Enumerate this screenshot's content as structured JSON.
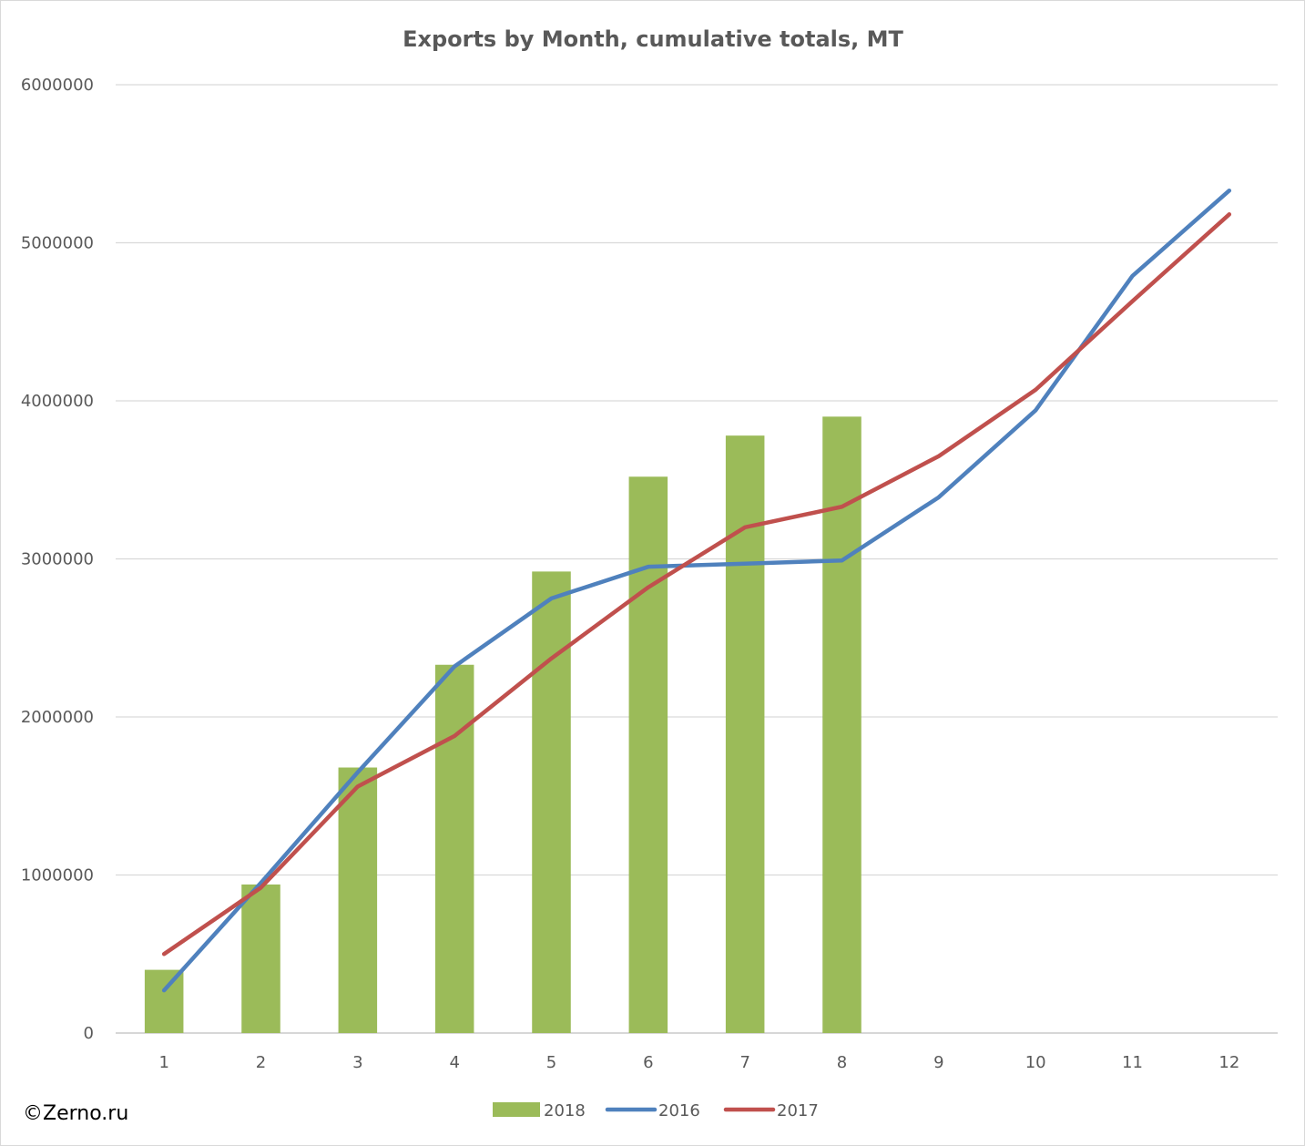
{
  "credit": "©Zerno.ru",
  "colors": {
    "series_2018": "#9bbb59",
    "series_2016": "#4f81bd",
    "series_2017": "#c0504d",
    "grid": "#d9d9d9",
    "text": "#595959"
  },
  "chart_data": {
    "type": "bar",
    "title": "Exports by Month, cumulative totals, MT",
    "xlabel": "",
    "ylabel": "",
    "categories": [
      "1",
      "2",
      "3",
      "4",
      "5",
      "6",
      "7",
      "8",
      "9",
      "10",
      "11",
      "12"
    ],
    "ylim": [
      0,
      6000000
    ],
    "yticks": [
      0,
      1000000,
      2000000,
      3000000,
      4000000,
      5000000,
      6000000
    ],
    "ytick_labels": [
      "0",
      "1000000",
      "2000000",
      "3000000",
      "4000000",
      "5000000",
      "6000000"
    ],
    "grid": true,
    "legend_position": "bottom",
    "series": [
      {
        "name": "2018",
        "type": "bar",
        "color": "#9bbb59",
        "values": [
          400000,
          940000,
          1680000,
          2330000,
          2920000,
          3520000,
          3780000,
          3900000,
          null,
          null,
          null,
          null
        ]
      },
      {
        "name": "2016",
        "type": "line",
        "color": "#4f81bd",
        "values": [
          270000,
          950000,
          1650000,
          2320000,
          2750000,
          2950000,
          2970000,
          2990000,
          3390000,
          3940000,
          4790000,
          5330000
        ]
      },
      {
        "name": "2017",
        "type": "line",
        "color": "#c0504d",
        "values": [
          500000,
          920000,
          1560000,
          1880000,
          2370000,
          2820000,
          3200000,
          3330000,
          3650000,
          4070000,
          4630000,
          5180000
        ]
      }
    ]
  }
}
